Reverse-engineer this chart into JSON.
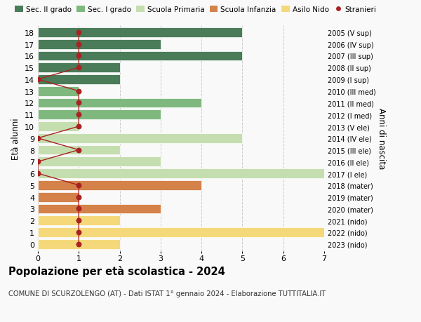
{
  "ages": [
    18,
    17,
    16,
    15,
    14,
    13,
    12,
    11,
    10,
    9,
    8,
    7,
    6,
    5,
    4,
    3,
    2,
    1,
    0
  ],
  "right_labels": [
    "2005 (V sup)",
    "2006 (IV sup)",
    "2007 (III sup)",
    "2008 (II sup)",
    "2009 (I sup)",
    "2010 (III med)",
    "2011 (II med)",
    "2012 (I med)",
    "2013 (V ele)",
    "2014 (IV ele)",
    "2015 (III ele)",
    "2016 (II ele)",
    "2017 (I ele)",
    "2018 (mater)",
    "2019 (mater)",
    "2020 (mater)",
    "2021 (nido)",
    "2022 (nido)",
    "2023 (nido)"
  ],
  "bar_values": [
    5,
    3,
    5,
    2,
    2,
    1,
    4,
    3,
    1,
    5,
    2,
    3,
    7,
    4,
    1,
    3,
    2,
    7,
    2
  ],
  "bar_colors": [
    "#4a7c59",
    "#4a7c59",
    "#4a7c59",
    "#4a7c59",
    "#4a7c59",
    "#7fb87f",
    "#7fb87f",
    "#7fb87f",
    "#c5deb0",
    "#c5deb0",
    "#c5deb0",
    "#c5deb0",
    "#c5deb0",
    "#d4824a",
    "#d4824a",
    "#d4824a",
    "#f5d87a",
    "#f5d87a",
    "#f5d87a"
  ],
  "stranieri_x": [
    1,
    1,
    1,
    1,
    0,
    1,
    1,
    1,
    1,
    0,
    1,
    0,
    0,
    1,
    1,
    1,
    1,
    1,
    1
  ],
  "color_sec2": "#4a7c59",
  "color_sec1": "#7fb87f",
  "color_prim": "#c5deb0",
  "color_inf": "#d4824a",
  "color_nido": "#f5d87a",
  "color_stranieri": "#aa2222",
  "title": "Popolazione per età scolastica - 2024",
  "subtitle": "COMUNE DI SCURZOLENGO (AT) - Dati ISTAT 1° gennaio 2024 - Elaborazione TUTTITALIA.IT",
  "ylabel": "Età alunni",
  "ylabel_right": "Anni di nascita",
  "bg_color": "#f9f9f9",
  "grid_color": "#cccccc"
}
